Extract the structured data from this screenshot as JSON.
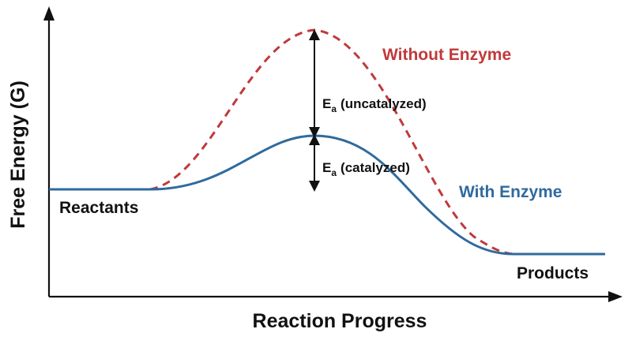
{
  "axes": {
    "y_title": "Free Energy (G)",
    "x_title": "Reaction Progress"
  },
  "states": {
    "reactants": "Reactants",
    "products": "Products"
  },
  "curves": {
    "without_enzyme": {
      "label": "Without Enzyme",
      "color": "#c0393b",
      "style": "dashed"
    },
    "with_enzyme": {
      "label": "With Enzyme",
      "color": "#2f6a9e",
      "style": "solid"
    }
  },
  "activation_energy": {
    "symbol": "E",
    "subscript": "a",
    "uncatalyzed": "(uncatalyzed)",
    "catalyzed": "(catalyzed)"
  },
  "colors": {
    "axis": "#111111",
    "background": "#ffffff"
  }
}
